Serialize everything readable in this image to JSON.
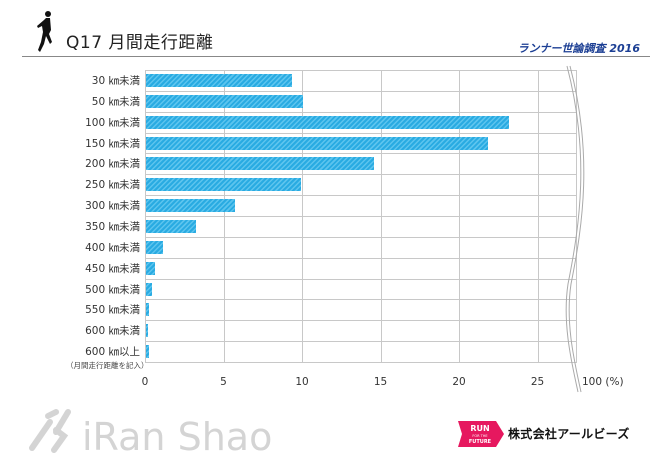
{
  "header": {
    "title": "Q17 月間走行距離",
    "survey_label": "ランナー世論調査 2016"
  },
  "chart": {
    "y_sub_note": "（月間走行距離を記入）",
    "x_ticks": [
      "0",
      "5",
      "10",
      "15",
      "20",
      "25"
    ],
    "x_max_label": "100 (%)"
  },
  "footer": {
    "watermark": "iRan Shao",
    "brand_badge": {
      "line1": "RUN",
      "line2": "FOR THE",
      "line3": "FUTURE"
    },
    "company": "株式会社アールビーズ"
  },
  "colors": {
    "bar": "#29abe2",
    "survey_label": "#1c3f94",
    "brand_badge": "#e6185f"
  },
  "chart_data": {
    "type": "bar",
    "orientation": "horizontal",
    "title": "Q17 月間走行距離",
    "xlabel": "(%)",
    "ylabel": "",
    "xlim": [
      0,
      100
    ],
    "axis_break": [
      27,
      99
    ],
    "x_ticks": [
      0,
      5,
      10,
      15,
      20,
      25,
      100
    ],
    "grid": true,
    "categories": [
      "30 ㎞未満",
      "50 ㎞未満",
      "100 ㎞未満",
      "150 ㎞未満",
      "200 ㎞未満",
      "250 ㎞未満",
      "300 ㎞未満",
      "350 ㎞未満",
      "400 ㎞未満",
      "450 ㎞未満",
      "500 ㎞未満",
      "550 ㎞未満",
      "600 ㎞未満",
      "600 ㎞以上"
    ],
    "values": [
      9.3,
      10.0,
      23.1,
      21.8,
      14.5,
      9.9,
      5.7,
      3.2,
      1.1,
      0.6,
      0.4,
      0.2,
      0.1,
      0.2
    ],
    "annotations": [
      "600 ㎞以上（月間走行距離を記入）"
    ]
  }
}
